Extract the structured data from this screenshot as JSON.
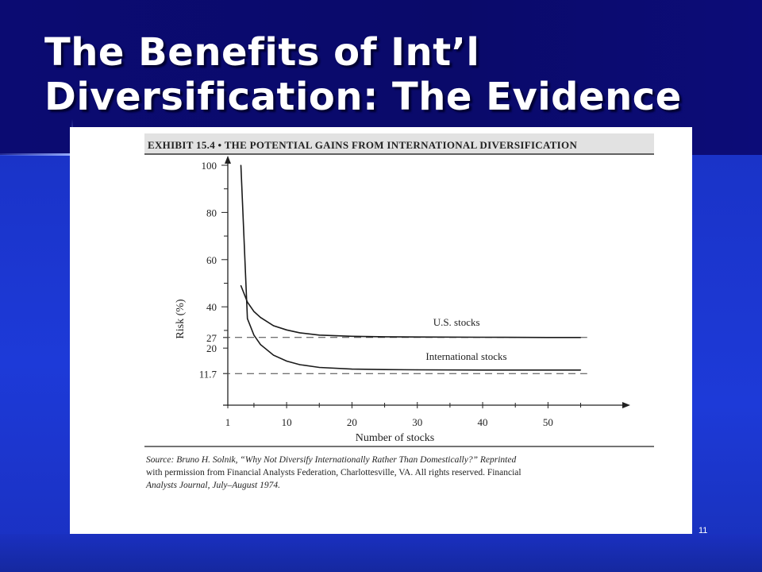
{
  "slide": {
    "title_line1": "The Benefits of Int’l",
    "title_line2": "Diversification:  The Evidence",
    "page_number": "11"
  },
  "exhibit": {
    "header": "EXHIBIT 15.4 • THE POTENTIAL GAINS FROM INTERNATIONAL DIVERSIFICATION",
    "source_line1": "Source: Bruno H. Solnik, “Why Not Diversify Internationally Rather Than Domestically?” Reprinted",
    "source_line2": "with permission from Financial Analysts Federation, Charlottesville, VA. All rights reserved. Financial",
    "source_line3": "Analysts Journal, July–August 1974."
  },
  "chart_data": {
    "type": "line",
    "xlabel": "Number of stocks",
    "ylabel": "Risk (%)",
    "xlim": [
      1,
      57
    ],
    "ylim": [
      0,
      100
    ],
    "x_ticks": [
      1,
      10,
      20,
      30,
      40,
      50
    ],
    "y_ticks": [
      100,
      80,
      60,
      40
    ],
    "y_ref_labels": [
      "27",
      "20",
      "11.7"
    ],
    "reference_lines": [
      27,
      11.7
    ],
    "series": [
      {
        "name": "U.S. stocks",
        "x": [
          3,
          4,
          5,
          6,
          8,
          10,
          12,
          15,
          20,
          25,
          30,
          40,
          50,
          55
        ],
        "y": [
          49,
          42,
          38,
          35.5,
          32,
          30.2,
          29,
          28,
          27.5,
          27.3,
          27.2,
          27.1,
          27,
          27
        ]
      },
      {
        "name": "International stocks",
        "x": [
          3,
          4,
          5,
          6,
          8,
          10,
          12,
          15,
          20,
          25,
          30,
          40,
          50,
          55
        ],
        "y": [
          100,
          35,
          28,
          24,
          19.5,
          17,
          15.5,
          14.3,
          13.6,
          13.4,
          13.3,
          13.2,
          13.2,
          13.2
        ]
      }
    ]
  }
}
